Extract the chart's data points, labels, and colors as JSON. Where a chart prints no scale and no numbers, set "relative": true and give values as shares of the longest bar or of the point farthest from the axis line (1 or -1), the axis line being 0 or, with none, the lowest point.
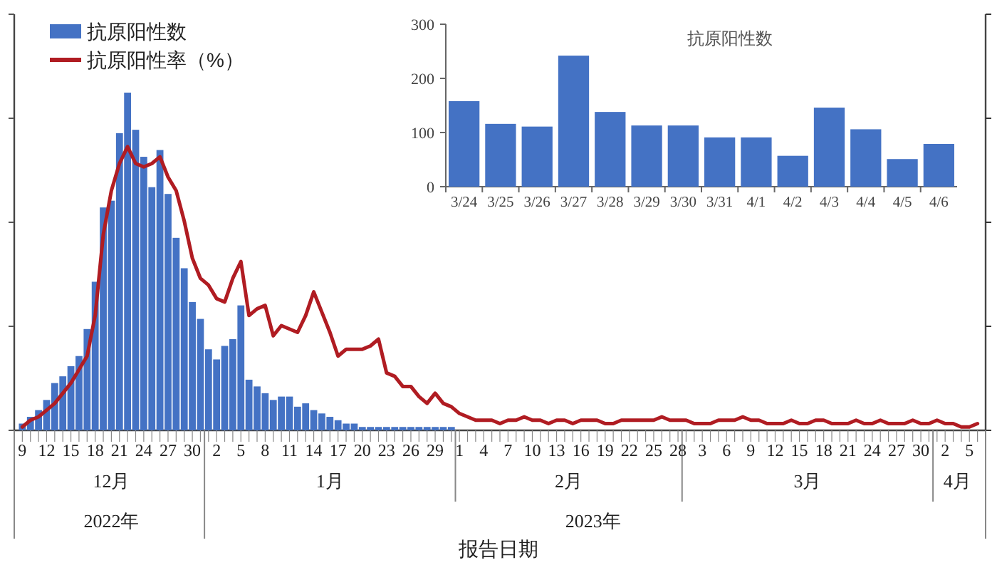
{
  "chart_data": [
    {
      "type": "bar",
      "relative": true,
      "legend": "top left",
      "xlabel": "报告日期",
      "x": [
        "2022-12-09",
        "2022-12-10",
        "2022-12-11",
        "2022-12-12",
        "2022-12-13",
        "2022-12-14",
        "2022-12-15",
        "2022-12-16",
        "2022-12-17",
        "2022-12-18",
        "2022-12-19",
        "2022-12-20",
        "2022-12-21",
        "2022-12-22",
        "2022-12-23",
        "2022-12-24",
        "2022-12-25",
        "2022-12-26",
        "2022-12-27",
        "2022-12-28",
        "2022-12-29",
        "2022-12-30",
        "2022-12-31",
        "2023-01-01",
        "2023-01-02",
        "2023-01-03",
        "2023-01-04",
        "2023-01-05",
        "2023-01-06",
        "2023-01-07",
        "2023-01-08",
        "2023-01-09",
        "2023-01-10",
        "2023-01-11",
        "2023-01-12",
        "2023-01-13",
        "2023-01-14",
        "2023-01-15",
        "2023-01-16",
        "2023-01-17",
        "2023-01-18",
        "2023-01-19",
        "2023-01-20",
        "2023-01-21",
        "2023-01-22",
        "2023-01-23",
        "2023-01-24",
        "2023-01-25",
        "2023-01-26",
        "2023-01-27",
        "2023-01-28",
        "2023-01-29",
        "2023-01-30",
        "2023-01-31",
        "2023-02-01",
        "2023-02-02",
        "2023-02-03",
        "2023-02-04",
        "2023-02-05",
        "2023-02-06",
        "2023-02-07",
        "2023-02-08",
        "2023-02-09",
        "2023-02-10",
        "2023-02-11",
        "2023-02-12",
        "2023-02-13",
        "2023-02-14",
        "2023-02-15",
        "2023-02-16",
        "2023-02-17",
        "2023-02-18",
        "2023-02-19",
        "2023-02-20",
        "2023-02-21",
        "2023-02-22",
        "2023-02-23",
        "2023-02-24",
        "2023-02-25",
        "2023-02-26",
        "2023-02-27",
        "2023-02-28",
        "2023-03-01",
        "2023-03-02",
        "2023-03-03",
        "2023-03-04",
        "2023-03-05",
        "2023-03-06",
        "2023-03-07",
        "2023-03-08",
        "2023-03-09",
        "2023-03-10",
        "2023-03-11",
        "2023-03-12",
        "2023-03-13",
        "2023-03-14",
        "2023-03-15",
        "2023-03-16",
        "2023-03-17",
        "2023-03-18",
        "2023-03-19",
        "2023-03-20",
        "2023-03-21",
        "2023-03-22",
        "2023-03-23",
        "2023-03-24",
        "2023-03-25",
        "2023-03-26",
        "2023-03-27",
        "2023-03-28",
        "2023-03-29",
        "2023-03-30",
        "2023-03-31",
        "2023-04-01",
        "2023-04-02",
        "2023-04-03",
        "2023-04-04",
        "2023-04-05",
        "2023-04-06"
      ],
      "xlim": [
        "2022-12-08",
        "2023-04-07"
      ],
      "xticks": [
        {
          "value": "2022-12-09",
          "label": "9"
        },
        {
          "value": "2022-12-12",
          "label": "12"
        },
        {
          "value": "2022-12-15",
          "label": "15"
        },
        {
          "value": "2022-12-18",
          "label": "18"
        },
        {
          "value": "2022-12-21",
          "label": "21"
        },
        {
          "value": "2022-12-24",
          "label": "24"
        },
        {
          "value": "2022-12-27",
          "label": "27"
        },
        {
          "value": "2022-12-30",
          "label": "30"
        },
        {
          "value": "2023-01-02",
          "label": "2"
        },
        {
          "value": "2023-01-05",
          "label": "5"
        },
        {
          "value": "2023-01-08",
          "label": "8"
        },
        {
          "value": "2023-01-11",
          "label": "11"
        },
        {
          "value": "2023-01-14",
          "label": "14"
        },
        {
          "value": "2023-01-17",
          "label": "17"
        },
        {
          "value": "2023-01-20",
          "label": "20"
        },
        {
          "value": "2023-01-23",
          "label": "23"
        },
        {
          "value": "2023-01-26",
          "label": "26"
        },
        {
          "value": "2023-01-29",
          "label": "29"
        },
        {
          "value": "2023-02-01",
          "label": "1"
        },
        {
          "value": "2023-02-04",
          "label": "4"
        },
        {
          "value": "2023-02-07",
          "label": "7"
        },
        {
          "value": "2023-02-10",
          "label": "10"
        },
        {
          "value": "2023-02-13",
          "label": "13"
        },
        {
          "value": "2023-02-16",
          "label": "16"
        },
        {
          "value": "2023-02-19",
          "label": "19"
        },
        {
          "value": "2023-02-22",
          "label": "22"
        },
        {
          "value": "2023-02-25",
          "label": "25"
        },
        {
          "value": "2023-02-28",
          "label": "28"
        },
        {
          "value": "2023-03-03",
          "label": "3"
        },
        {
          "value": "2023-03-06",
          "label": "6"
        },
        {
          "value": "2023-03-09",
          "label": "9"
        },
        {
          "value": "2023-03-12",
          "label": "12"
        },
        {
          "value": "2023-03-15",
          "label": "15"
        },
        {
          "value": "2023-03-18",
          "label": "18"
        },
        {
          "value": "2023-03-21",
          "label": "21"
        },
        {
          "value": "2023-03-24",
          "label": "24"
        },
        {
          "value": "2023-03-27",
          "label": "27"
        },
        {
          "value": "2023-03-30",
          "label": "30"
        },
        {
          "value": "2023-04-02",
          "label": "2"
        },
        {
          "value": "2023-04-05",
          "label": "5"
        }
      ],
      "series": [
        {
          "name": "抗原阳性数",
          "type": "bar",
          "color": "#4472c4",
          "values": [
            0.02,
            0.04,
            0.06,
            0.09,
            0.14,
            0.16,
            0.19,
            0.22,
            0.3,
            0.44,
            0.66,
            0.68,
            0.88,
            1,
            0.89,
            0.81,
            0.72,
            0.83,
            0.7,
            0.57,
            0.48,
            0.38,
            0.33,
            0.24,
            0.21,
            0.25,
            0.27,
            0.37,
            0.15,
            0.13,
            0.11,
            0.09,
            0.1,
            0.1,
            0.07,
            0.08,
            0.06,
            0.05,
            0.04,
            0.03,
            0.02,
            0.02,
            0.01,
            0.01,
            0.01,
            0.01,
            0.01,
            0.01,
            0.01,
            0.01,
            0.01,
            0.01,
            0.01,
            0.01,
            null,
            null,
            null,
            null,
            null,
            null,
            null,
            null,
            null,
            null,
            null,
            null,
            null,
            null,
            null,
            null,
            null,
            null,
            null,
            null,
            null,
            null,
            null,
            null,
            null,
            null,
            null,
            null,
            null,
            null,
            null,
            null,
            null,
            null,
            null,
            null,
            null,
            null,
            null,
            null,
            null,
            null,
            null,
            null,
            null,
            null,
            null,
            null,
            null,
            null,
            null,
            null,
            null,
            null,
            null,
            null,
            null,
            null,
            null,
            null,
            null,
            null,
            null,
            null,
            null
          ]
        },
        {
          "name": "抗原阳性率（%）",
          "type": "line",
          "color": "#b01c22",
          "values": [
            0.01,
            0.03,
            0.04,
            0.06,
            0.08,
            0.11,
            0.14,
            0.18,
            0.22,
            0.34,
            0.58,
            0.71,
            0.79,
            0.84,
            0.79,
            0.78,
            0.79,
            0.81,
            0.75,
            0.71,
            0.62,
            0.51,
            0.45,
            0.43,
            0.39,
            0.38,
            0.45,
            0.5,
            0.34,
            0.36,
            0.37,
            0.28,
            0.31,
            0.3,
            0.29,
            0.34,
            0.41,
            0.35,
            0.29,
            0.22,
            0.24,
            0.24,
            0.24,
            0.25,
            0.27,
            0.17,
            0.16,
            0.13,
            0.13,
            0.1,
            0.08,
            0.11,
            0.08,
            0.07,
            0.05,
            0.04,
            0.03,
            0.03,
            0.03,
            0.02,
            0.03,
            0.03,
            0.04,
            0.03,
            0.03,
            0.02,
            0.03,
            0.03,
            0.02,
            0.03,
            0.03,
            0.03,
            0.02,
            0.02,
            0.03,
            0.03,
            0.03,
            0.03,
            0.03,
            0.04,
            0.03,
            0.03,
            0.03,
            0.02,
            0.02,
            0.02,
            0.03,
            0.03,
            0.03,
            0.04,
            0.03,
            0.03,
            0.02,
            0.02,
            0.02,
            0.03,
            0.02,
            0.02,
            0.03,
            0.03,
            0.02,
            0.02,
            0.02,
            0.03,
            0.02,
            0.02,
            0.03,
            0.02,
            0.02,
            0.02,
            0.03,
            0.02,
            0.02,
            0.03,
            0.02,
            0.02,
            0.01,
            0.01,
            0.02
          ]
        }
      ],
      "annotations": [
        "12月",
        "1月",
        "2月",
        "3月",
        "4月",
        "2022年",
        "2023年"
      ]
    },
    {
      "type": "bar",
      "title": "抗原阳性数",
      "categories": [
        "3/24",
        "3/25",
        "3/26",
        "3/27",
        "3/28",
        "3/29",
        "3/30",
        "3/31",
        "4/1",
        "4/2",
        "4/3",
        "4/4",
        "4/5",
        "4/6"
      ],
      "values": [
        158,
        116,
        111,
        242,
        138,
        113,
        113,
        91,
        91,
        57,
        146,
        106,
        51,
        79
      ],
      "color": "#4472c4",
      "ylim": [
        0,
        300
      ],
      "yticks": [
        0,
        100,
        200,
        300
      ]
    }
  ]
}
